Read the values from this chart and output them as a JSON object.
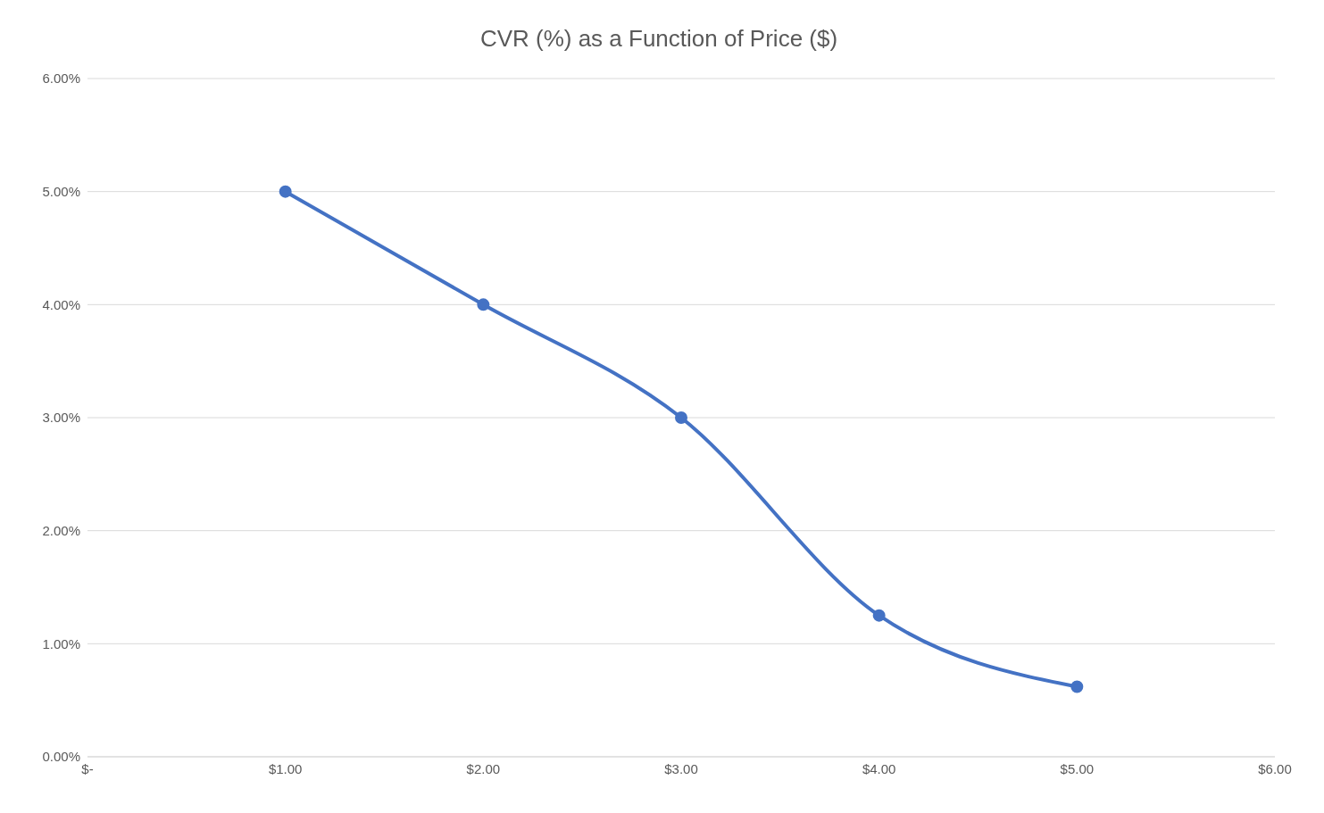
{
  "chart_data": {
    "type": "line",
    "title": "CVR (%) as a Function of Price ($)",
    "x": [
      1,
      2,
      3,
      4,
      5
    ],
    "values": [
      5,
      4,
      3,
      1.25,
      0.62
    ],
    "color": "#4472c4",
    "xlim": [
      0,
      6
    ],
    "xticks": [
      {
        "value": 0,
        "label": "$-"
      },
      {
        "value": 1,
        "label": "$1.00"
      },
      {
        "value": 2,
        "label": "$2.00"
      },
      {
        "value": 3,
        "label": "$3.00"
      },
      {
        "value": 4,
        "label": "$4.00"
      },
      {
        "value": 5,
        "label": "$5.00"
      },
      {
        "value": 6,
        "label": "$6.00"
      }
    ],
    "ylim": [
      0,
      6
    ],
    "yticks": [
      {
        "value": 0,
        "label": "0.00%"
      },
      {
        "value": 1,
        "label": "1.00%"
      },
      {
        "value": 2,
        "label": "2.00%"
      },
      {
        "value": 3,
        "label": "3.00%"
      },
      {
        "value": 4,
        "label": "4.00%"
      },
      {
        "value": 5,
        "label": "5.00%"
      },
      {
        "value": 6,
        "label": "6.00%"
      }
    ],
    "grid": "y",
    "marker": "circle",
    "line_style": "solid"
  }
}
